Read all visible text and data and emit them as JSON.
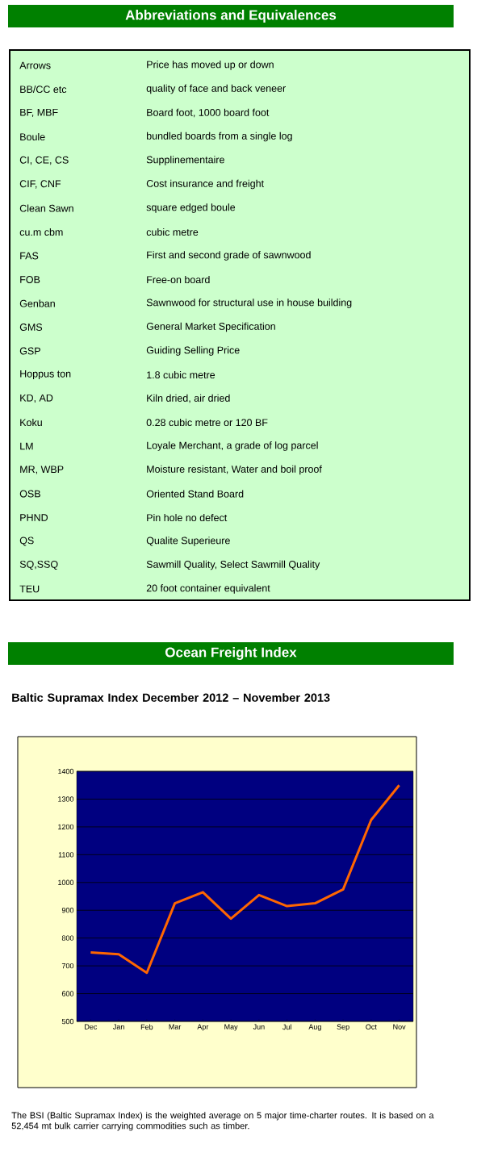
{
  "chart_data": [
    {
      "type": "other",
      "title": "Abbreviations and Equivalences",
      "annotations": [
        "Arrows",
        "Price has moved up or down",
        "BB/CC etc",
        "quality of face and back veneer",
        "BF, MBF",
        "Board foot, 1000 board foot",
        "Boule",
        "bundled boards from a single log",
        "CI, CE, CS",
        "Supplinementaire",
        "CIF, CNF",
        "Cost insurance and freight",
        "Clean Sawn",
        "square edged boule",
        "cu.m cbm",
        "cubic metre",
        "FAS",
        "First and second grade of sawnwood",
        "FOB",
        "Free-on board",
        "Genban",
        "Sawnwood for structural use in house building",
        "GMS",
        "General Market Specification",
        "GSP",
        "Guiding Selling Price",
        "Hoppus ton",
        "1.8 cubic metre",
        "KD, AD",
        "Kiln dried, air dried",
        "Koku",
        "0.28 cubic metre or 120 BF",
        "LM",
        "Loyale Merchant, a grade of log parcel",
        "MR, WBP",
        "Moisture resistant, Water and boil proof",
        "OSB",
        "Oriented Stand Board",
        "PHND",
        "Pin hole no defect",
        "QS",
        "Qualite Superieure",
        "SQ,SSQ",
        "Sawmill Quality, Select Sawmill Quality",
        "TEU",
        "20 foot container equivalent"
      ]
    },
    {
      "type": "line",
      "title": "Ocean Freight Index",
      "subtitle": "Baltic Supramax Index December 2012 –  November 2013",
      "categories": [
        "Dec",
        "Jan",
        "Feb",
        "Mar",
        "Apr",
        "May",
        "Jun",
        "Jul",
        "Aug",
        "Sep",
        "Oct",
        "Nov"
      ],
      "series": [
        {
          "color": "#ff6600",
          "values": [
            748,
            742,
            675,
            925,
            965,
            870,
            955,
            915,
            925,
            975,
            1225,
            1350
          ]
        }
      ],
      "ylim": [
        500,
        1400
      ],
      "yticks": [
        500,
        600,
        700,
        800,
        900,
        1000,
        1100,
        1200,
        1300,
        1400
      ],
      "grid": "y",
      "annotations": [
        "The BSI (Baltic Supramax Index) is the weighted average on 5 major time-charter routes. It is based on a 52,454 mt bulk carrier carrying commodities such as timber."
      ]
    }
  ]
}
